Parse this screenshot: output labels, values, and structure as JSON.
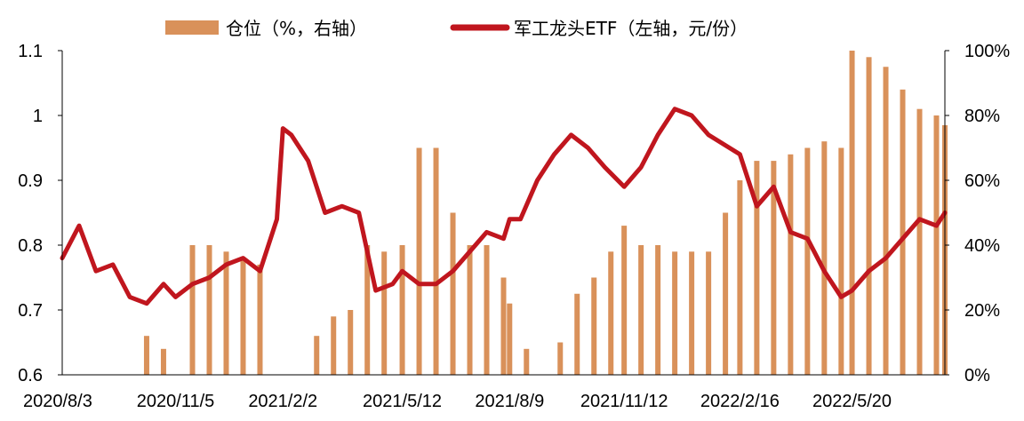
{
  "chart_data": {
    "type": "bar+line",
    "legend": {
      "bar_label": "仓位（%，右轴）",
      "line_label": "军工龙头ETF（左轴，元/份）",
      "placement": "top-center"
    },
    "colors": {
      "bar": "#D9915A",
      "line": "#C0161E"
    },
    "left_axis": {
      "min": 0.6,
      "max": 1.1,
      "ticks": [
        0.6,
        0.7,
        0.8,
        0.9,
        1,
        1.1
      ],
      "tick_labels": [
        "0.6",
        "0.7",
        "0.8",
        "0.9",
        "1",
        "1.1"
      ]
    },
    "right_axis": {
      "min": 0,
      "max": 100,
      "ticks": [
        0,
        20,
        40,
        60,
        80,
        100
      ],
      "tick_labels": [
        "0%",
        "20%",
        "40%",
        "60%",
        "80%",
        "100%"
      ]
    },
    "x_tick_labels": [
      "2020/8/3",
      "2020/11/5",
      "2021/2/2",
      "2021/5/12",
      "2021/8/9",
      "2021/11/12",
      "2022/2/16",
      "2022/5/20"
    ],
    "x_range": [
      "2020/8/3",
      "2022/8/5"
    ],
    "line_series": {
      "name": "军工龙头ETF（左轴，元/份）",
      "x": [
        "2020-08-03",
        "2020-08-17",
        "2020-08-31",
        "2020-09-14",
        "2020-09-28",
        "2020-10-12",
        "2020-10-26",
        "2020-11-05",
        "2020-11-19",
        "2020-12-03",
        "2020-12-17",
        "2020-12-31",
        "2021-01-14",
        "2021-01-28",
        "2021-02-02",
        "2021-02-09",
        "2021-02-23",
        "2021-03-09",
        "2021-03-23",
        "2021-04-06",
        "2021-04-20",
        "2021-05-04",
        "2021-05-12",
        "2021-05-26",
        "2021-06-09",
        "2021-06-23",
        "2021-07-07",
        "2021-07-21",
        "2021-08-04",
        "2021-08-09",
        "2021-08-18",
        "2021-09-01",
        "2021-09-15",
        "2021-09-29",
        "2021-10-13",
        "2021-10-27",
        "2021-11-12",
        "2021-11-26",
        "2021-12-10",
        "2021-12-24",
        "2022-01-07",
        "2022-01-21",
        "2022-02-16",
        "2022-03-02",
        "2022-03-16",
        "2022-03-30",
        "2022-04-13",
        "2022-04-27",
        "2022-05-11",
        "2022-05-20",
        "2022-06-03",
        "2022-06-17",
        "2022-07-01",
        "2022-07-15",
        "2022-07-29",
        "2022-08-05"
      ],
      "values": [
        0.78,
        0.83,
        0.76,
        0.77,
        0.72,
        0.71,
        0.74,
        0.72,
        0.74,
        0.75,
        0.77,
        0.78,
        0.76,
        0.84,
        0.98,
        0.97,
        0.93,
        0.85,
        0.86,
        0.85,
        0.73,
        0.74,
        0.76,
        0.74,
        0.74,
        0.76,
        0.79,
        0.82,
        0.81,
        0.84,
        0.84,
        0.9,
        0.94,
        0.97,
        0.95,
        0.92,
        0.89,
        0.92,
        0.97,
        1.01,
        1.0,
        0.97,
        0.94,
        0.86,
        0.89,
        0.82,
        0.81,
        0.76,
        0.72,
        0.73,
        0.76,
        0.78,
        0.81,
        0.84,
        0.83,
        0.85
      ]
    },
    "bar_series": {
      "name": "仓位（%，右轴）",
      "x": [
        "2020-08-03",
        "2020-09-14",
        "2020-09-28",
        "2020-10-12",
        "2020-10-26",
        "2020-11-05",
        "2020-11-19",
        "2020-12-03",
        "2020-12-17",
        "2020-12-31",
        "2021-01-14",
        "2021-01-28",
        "2021-02-02",
        "2021-02-16",
        "2021-03-02",
        "2021-03-16",
        "2021-03-30",
        "2021-04-13",
        "2021-04-27",
        "2021-05-12",
        "2021-05-26",
        "2021-06-09",
        "2021-06-23",
        "2021-07-07",
        "2021-07-21",
        "2021-08-04",
        "2021-08-09",
        "2021-08-23",
        "2021-09-06",
        "2021-09-20",
        "2021-10-04",
        "2021-10-18",
        "2021-11-01",
        "2021-11-12",
        "2021-11-26",
        "2021-12-10",
        "2021-12-24",
        "2022-01-07",
        "2022-01-21",
        "2022-02-04",
        "2022-02-16",
        "2022-03-02",
        "2022-03-16",
        "2022-03-30",
        "2022-04-13",
        "2022-04-27",
        "2022-05-11",
        "2022-05-20",
        "2022-06-03",
        "2022-06-17",
        "2022-07-01",
        "2022-07-15",
        "2022-07-29",
        "2022-08-05"
      ],
      "values": [
        0,
        0,
        0,
        12,
        8,
        0,
        40,
        40,
        38,
        36,
        34,
        0,
        0,
        0,
        12,
        18,
        20,
        40,
        38,
        40,
        70,
        70,
        50,
        40,
        40,
        30,
        22,
        8,
        0,
        10,
        25,
        30,
        38,
        46,
        40,
        40,
        38,
        38,
        38,
        50,
        60,
        66,
        66,
        68,
        70,
        72,
        70,
        100,
        98,
        95,
        88,
        82,
        80,
        77
      ]
    }
  }
}
